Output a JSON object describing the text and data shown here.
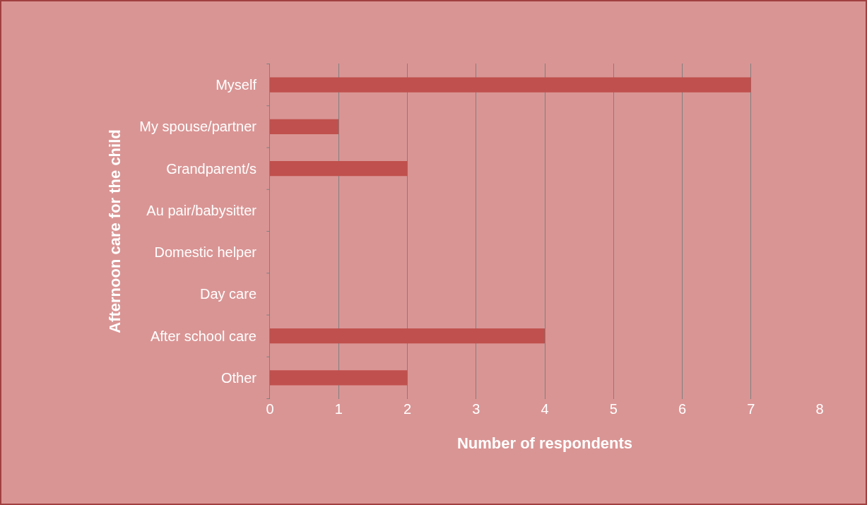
{
  "chart_data": {
    "type": "bar",
    "orientation": "horizontal",
    "xlabel": "Number of respondents",
    "ylabel": "Afternoon care for the child",
    "categories": [
      "Myself",
      "My spouse/partner",
      "Grandparent/s",
      "Au pair/babysitter",
      "Domestic helper",
      "Day care",
      "After school care",
      "Other"
    ],
    "values": [
      7,
      1,
      2,
      0,
      0,
      0,
      4,
      2
    ],
    "color": "#c0504d",
    "xlim": [
      0,
      8
    ],
    "xticks": [
      0,
      1,
      2,
      3,
      4,
      5,
      6,
      7,
      8
    ],
    "grid": "x"
  }
}
